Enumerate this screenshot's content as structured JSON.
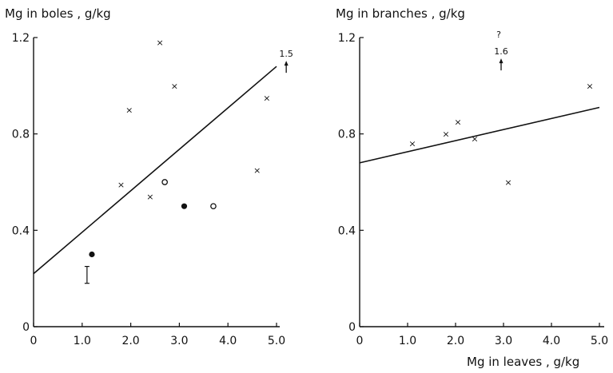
{
  "chart_data": [
    {
      "type": "scatter",
      "ylabel": "Mg in boles , g/kg",
      "xlabel": "",
      "xlim": [
        0,
        5.0
      ],
      "ylim": [
        0,
        1.2
      ],
      "x_ticks": [
        "0",
        "1.0",
        "2.0",
        "3.0",
        "4.0",
        "5.0"
      ],
      "y_ticks": [
        "0",
        "0.4",
        "0.8",
        "1.2"
      ],
      "grid": false,
      "series": [
        {
          "marker": "cross",
          "points": [
            {
              "x": 1.8,
              "y": 0.59
            },
            {
              "x": 1.97,
              "y": 0.9
            },
            {
              "x": 2.4,
              "y": 0.54
            },
            {
              "x": 2.6,
              "y": 1.18
            },
            {
              "x": 2.9,
              "y": 1.0
            },
            {
              "x": 4.6,
              "y": 0.65
            },
            {
              "x": 4.8,
              "y": 0.95
            }
          ]
        },
        {
          "marker": "filled-circle",
          "points": [
            {
              "x": 1.2,
              "y": 0.3
            },
            {
              "x": 3.1,
              "y": 0.5
            }
          ]
        },
        {
          "marker": "open-circle",
          "points": [
            {
              "x": 2.7,
              "y": 0.6
            },
            {
              "x": 3.7,
              "y": 0.5
            }
          ]
        }
      ],
      "fit_line": {
        "x": [
          0,
          5.0
        ],
        "y": [
          0.22,
          1.08
        ]
      },
      "annotations": [
        {
          "text": "1.5",
          "x": 5.2,
          "y": 1.12,
          "arrow": "up"
        }
      ],
      "error_bar": {
        "x": 1.1,
        "y_low": 0.18,
        "y_high": 0.25
      }
    },
    {
      "type": "scatter",
      "ylabel": "Mg in branches , g/kg",
      "xlabel": "Mg in leaves , g/kg",
      "xlim": [
        0,
        5.0
      ],
      "ylim": [
        0,
        1.2
      ],
      "x_ticks": [
        "0",
        "1.0",
        "2.0",
        "3.0",
        "4.0",
        "5.0"
      ],
      "y_ticks": [
        "0",
        "0.4",
        "0.8",
        "1.2"
      ],
      "grid": false,
      "series": [
        {
          "marker": "cross",
          "points": [
            {
              "x": 1.1,
              "y": 0.76
            },
            {
              "x": 1.8,
              "y": 0.8
            },
            {
              "x": 2.05,
              "y": 0.85
            },
            {
              "x": 2.4,
              "y": 0.78
            },
            {
              "x": 3.1,
              "y": 0.6
            },
            {
              "x": 4.8,
              "y": 1.0
            }
          ]
        }
      ],
      "fit_line": {
        "x": [
          0,
          5.0
        ],
        "y": [
          0.68,
          0.91
        ]
      },
      "annotations": [
        {
          "text": "1.6",
          "x": 2.95,
          "y": 1.13,
          "arrow": "up"
        },
        {
          "text": "?",
          "x": 2.9,
          "y": 1.2,
          "arrow": "none"
        }
      ]
    }
  ]
}
